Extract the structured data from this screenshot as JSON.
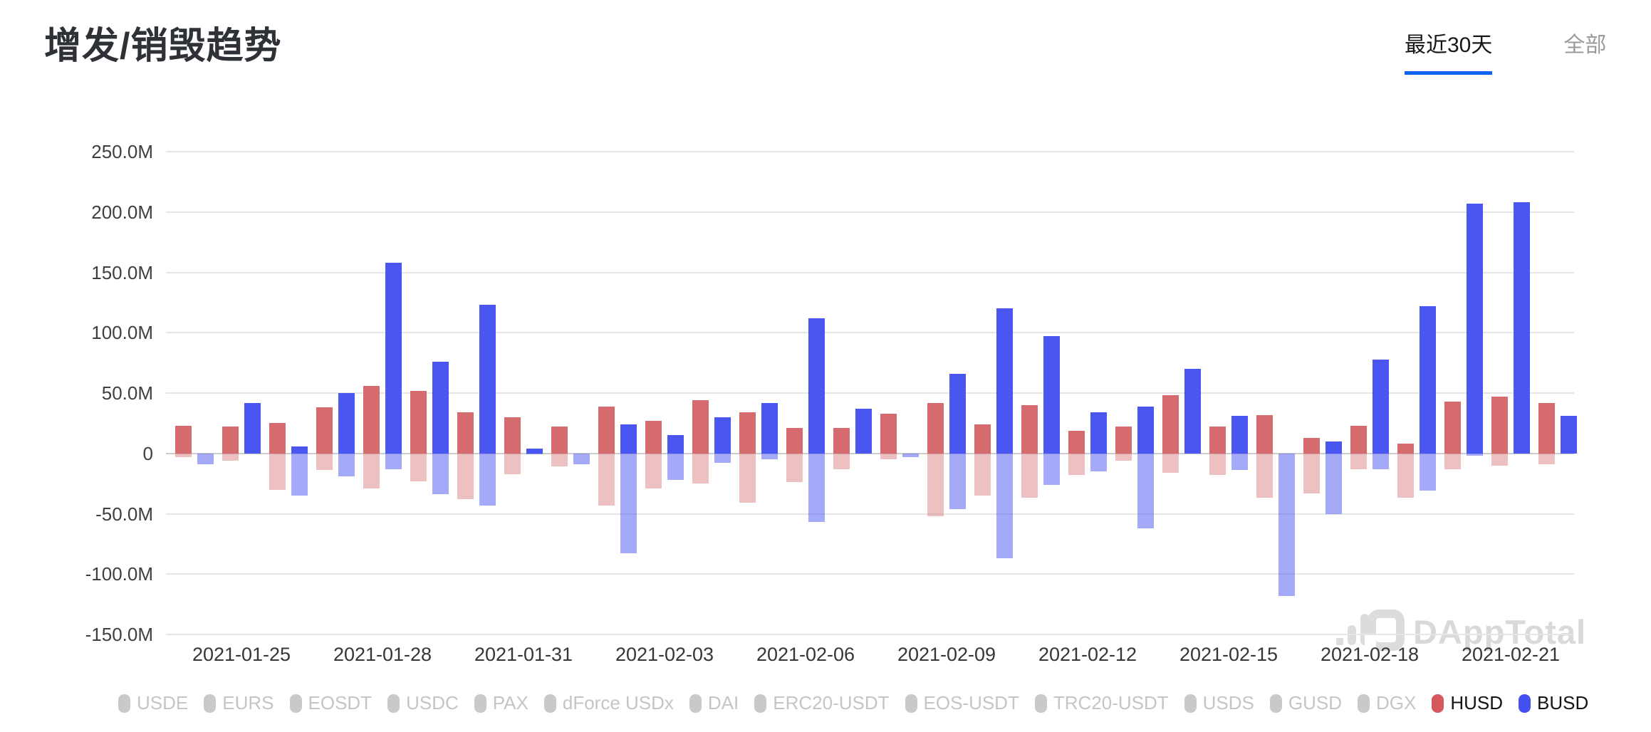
{
  "header": {
    "title": "增发/销毁趋势"
  },
  "tabs": [
    {
      "label": "最近30天",
      "active": true
    },
    {
      "label": "全部",
      "active": false
    }
  ],
  "watermark": {
    "text": "DAppTotal"
  },
  "colors": {
    "husd": "#D56B6E",
    "husd_faded": "rgba(213,107,110,0.42)",
    "busd": "#4956F0",
    "busd_faded": "rgba(73,86,240,0.5)",
    "disabled_legend_marker": "#c9c9c9",
    "tab_underline": "#0d63f2",
    "grid": "#e6e6e6",
    "zero_line": "#cccccc",
    "watermark_gray": "#d9d9d9"
  },
  "chart_data": {
    "type": "bar",
    "title": "增发/销毁趋势",
    "unit": "M",
    "grid": true,
    "legend_position": "bottom",
    "ylim": [
      -150,
      250
    ],
    "y_ticks": [
      "250.0M",
      "200.0M",
      "150.0M",
      "100.0M",
      "50.0M",
      "0",
      "-50.0M",
      "-100.0M",
      "-150.0M"
    ],
    "y_tick_values": [
      250,
      200,
      150,
      100,
      50,
      0,
      -50,
      -100,
      -150
    ],
    "x_tick_labels": [
      "2021-01-25",
      "2021-01-28",
      "2021-01-31",
      "2021-02-03",
      "2021-02-06",
      "2021-02-09",
      "2021-02-12",
      "2021-02-15",
      "2021-02-18",
      "2021-02-21"
    ],
    "dates": [
      "2021-01-24",
      "2021-01-25",
      "2021-01-26",
      "2021-01-27",
      "2021-01-28",
      "2021-01-29",
      "2021-01-30",
      "2021-01-31",
      "2021-02-01",
      "2021-02-02",
      "2021-02-03",
      "2021-02-04",
      "2021-02-05",
      "2021-02-06",
      "2021-02-07",
      "2021-02-08",
      "2021-02-09",
      "2021-02-10",
      "2021-02-11",
      "2021-02-12",
      "2021-02-13",
      "2021-02-14",
      "2021-02-15",
      "2021-02-16",
      "2021-02-17",
      "2021-02-18",
      "2021-02-19",
      "2021-02-20",
      "2021-02-21",
      "2021-02-22"
    ],
    "series": [
      {
        "name": "HUSD",
        "color": "#D56B6E",
        "color_faded": "rgba(213,107,110,0.42)",
        "issued_M": [
          23,
          22,
          25,
          38,
          56,
          52,
          34,
          30,
          22,
          39,
          27,
          44,
          34,
          21,
          21,
          33,
          42,
          24,
          40,
          19,
          22,
          48,
          22,
          32,
          13,
          23,
          8,
          43,
          47,
          42
        ],
        "burned_M": [
          -3,
          -6,
          -30,
          -14,
          -29,
          -23,
          -38,
          -17,
          -11,
          -43,
          -29,
          -25,
          -41,
          -24,
          -13,
          -5,
          -52,
          -35,
          -37,
          -18,
          -6,
          -16,
          -18,
          -37,
          -33,
          -13,
          -37,
          -13,
          -10,
          -9
        ]
      },
      {
        "name": "BUSD",
        "color": "#4956F0",
        "color_faded": "rgba(73,86,240,0.5)",
        "issued_M": [
          0,
          42,
          6,
          50,
          158,
          76,
          123,
          4,
          0,
          24,
          15,
          30,
          42,
          112,
          37,
          0,
          66,
          120,
          97,
          34,
          39,
          70,
          31,
          0,
          10,
          78,
          122,
          207,
          208,
          31
        ],
        "burned_M": [
          -9,
          0,
          -35,
          -19,
          -13,
          -34,
          -43,
          -1,
          -9,
          -83,
          -22,
          -8,
          -5,
          -57,
          0,
          -3,
          -46,
          -87,
          -26,
          -15,
          -62,
          0,
          -14,
          -118,
          -50,
          -13,
          -31,
          -2,
          0,
          0
        ]
      }
    ]
  },
  "legend": {
    "items": [
      {
        "label": "USDE",
        "state": "disabled"
      },
      {
        "label": "EURS",
        "state": "disabled"
      },
      {
        "label": "EOSDT",
        "state": "disabled"
      },
      {
        "label": "USDC",
        "state": "disabled"
      },
      {
        "label": "PAX",
        "state": "disabled"
      },
      {
        "label": "dForce USDx",
        "state": "disabled"
      },
      {
        "label": "DAI",
        "state": "disabled"
      },
      {
        "label": "ERC20-USDT",
        "state": "disabled"
      },
      {
        "label": "EOS-USDT",
        "state": "disabled"
      },
      {
        "label": "TRC20-USDT",
        "state": "disabled"
      },
      {
        "label": "USDS",
        "state": "disabled"
      },
      {
        "label": "GUSD",
        "state": "disabled"
      },
      {
        "label": "DGX",
        "state": "disabled"
      },
      {
        "label": "HUSD",
        "state": "enabled",
        "color": "#D5595C"
      },
      {
        "label": "BUSD",
        "state": "enabled",
        "color": "#4450EF"
      }
    ]
  }
}
